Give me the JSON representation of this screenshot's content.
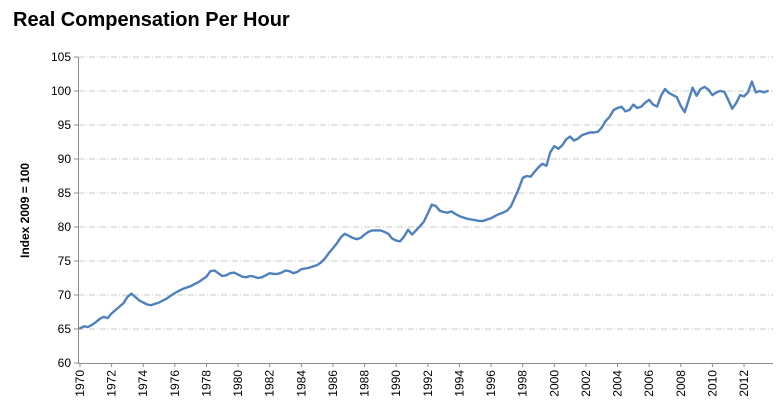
{
  "header": {
    "title": "Real Compensation Per Hour"
  },
  "colors": {
    "line": "#4F81BD",
    "grid": "#C9C9C9",
    "axis": "#8C8C8C",
    "text": "#000000",
    "background": "#FFFFFF"
  },
  "chart_data": {
    "type": "line",
    "title": "Real Compensation Per Hour",
    "xlabel": "",
    "ylabel": "Index 2009 = 100",
    "ylim": [
      60,
      105
    ],
    "y_ticks": [
      105,
      100,
      95,
      90,
      85,
      80,
      75,
      70,
      65,
      60
    ],
    "x_ticks": [
      1970,
      1972,
      1974,
      1976,
      1978,
      1980,
      1982,
      1984,
      1986,
      1988,
      1990,
      1992,
      1994,
      1996,
      1998,
      2000,
      2002,
      2004,
      2006,
      2008,
      2010,
      2012
    ],
    "x_range": [
      1970.0,
      2013.5
    ],
    "frequency": "quarterly",
    "grid": "horizontal-dashed",
    "legend_position": "none",
    "series": [
      {
        "name": "Real Compensation Per Hour",
        "start": "1970Q1",
        "values": [
          65.1,
          65.4,
          65.3,
          65.6,
          66.0,
          66.5,
          66.8,
          66.6,
          67.3,
          67.8,
          68.3,
          68.8,
          69.7,
          70.2,
          69.7,
          69.2,
          68.9,
          68.6,
          68.5,
          68.7,
          68.9,
          69.2,
          69.5,
          69.9,
          70.3,
          70.6,
          70.9,
          71.1,
          71.3,
          71.6,
          71.9,
          72.3,
          72.7,
          73.5,
          73.6,
          73.2,
          72.8,
          72.9,
          73.2,
          73.3,
          73.0,
          72.7,
          72.6,
          72.8,
          72.7,
          72.5,
          72.6,
          72.9,
          73.2,
          73.1,
          73.1,
          73.3,
          73.6,
          73.5,
          73.2,
          73.4,
          73.8,
          73.9,
          74.0,
          74.2,
          74.4,
          74.8,
          75.4,
          76.2,
          76.9,
          77.6,
          78.5,
          79.0,
          78.7,
          78.4,
          78.2,
          78.4,
          78.9,
          79.3,
          79.5,
          79.5,
          79.5,
          79.3,
          79.0,
          78.3,
          78.0,
          77.9,
          78.6,
          79.6,
          78.9,
          79.5,
          80.1,
          80.8,
          82.0,
          83.3,
          83.1,
          82.4,
          82.2,
          82.1,
          82.3,
          81.9,
          81.6,
          81.4,
          81.2,
          81.1,
          81.0,
          80.9,
          80.9,
          81.1,
          81.3,
          81.6,
          81.9,
          82.1,
          82.4,
          83.0,
          84.3,
          85.6,
          87.2,
          87.5,
          87.4,
          88.1,
          88.8,
          89.3,
          89.0,
          91.0,
          91.9,
          91.5,
          92.0,
          92.9,
          93.3,
          92.7,
          93.0,
          93.5,
          93.7,
          93.9,
          93.9,
          94.0,
          94.6,
          95.6,
          96.2,
          97.2,
          97.5,
          97.7,
          97.0,
          97.2,
          98.0,
          97.5,
          97.7,
          98.3,
          98.7,
          98.0,
          97.7,
          99.3,
          100.3,
          99.7,
          99.4,
          99.1,
          97.8,
          96.9,
          98.7,
          100.5,
          99.3,
          100.3,
          100.6,
          100.2,
          99.4,
          99.8,
          100.0,
          99.9,
          98.7,
          97.4,
          98.2,
          99.4,
          99.2,
          99.8,
          101.4,
          99.8,
          100.0,
          99.8,
          100.0
        ]
      }
    ]
  }
}
